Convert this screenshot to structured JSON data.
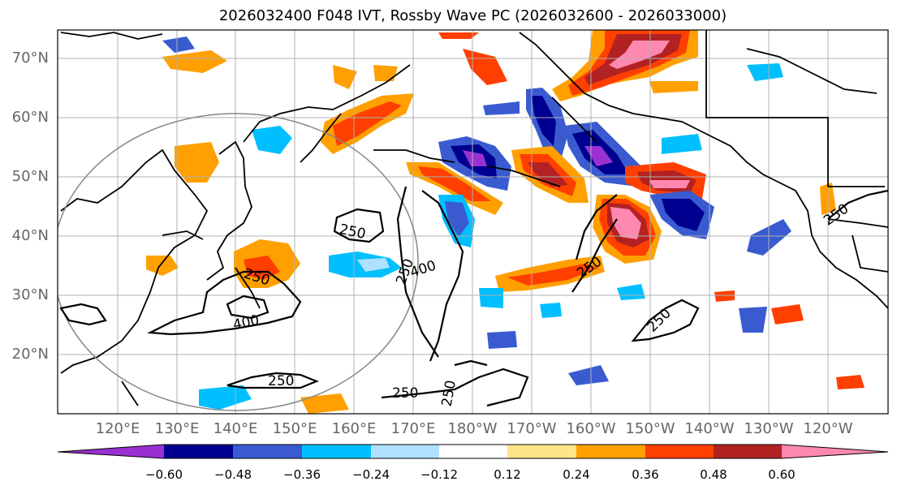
{
  "title": "2026032400 F048 IVT, Rossby Wave PC (2026032600 - 2026033000)",
  "lat_labels": [
    "70°N",
    "60°N",
    "50°N",
    "40°N",
    "30°N",
    "20°N"
  ],
  "lon_labels": [
    "120°E",
    "130°E",
    "140°E",
    "150°E",
    "160°E",
    "170°E",
    "180°W",
    "170°W",
    "160°W",
    "150°W",
    "140°W",
    "130°W",
    "120°W"
  ],
  "contour_labels": [
    "250",
    "250",
    "250",
    "250",
    "250",
    "250",
    "250",
    "250",
    "250",
    "400",
    "400"
  ],
  "colorbar": {
    "tick_labels": [
      "−0.60",
      "−0.48",
      "−0.36",
      "−0.24",
      "−0.12",
      "0.12",
      "0.24",
      "0.36",
      "0.48",
      "0.60"
    ],
    "colors": [
      "#9b30d0",
      "#000090",
      "#3a5bd0",
      "#00bfff",
      "#b0e0ff",
      "#ffffff",
      "#ffe58a",
      "#ffa000",
      "#ff3f00",
      "#b22222",
      "#ff88b0"
    ]
  }
}
